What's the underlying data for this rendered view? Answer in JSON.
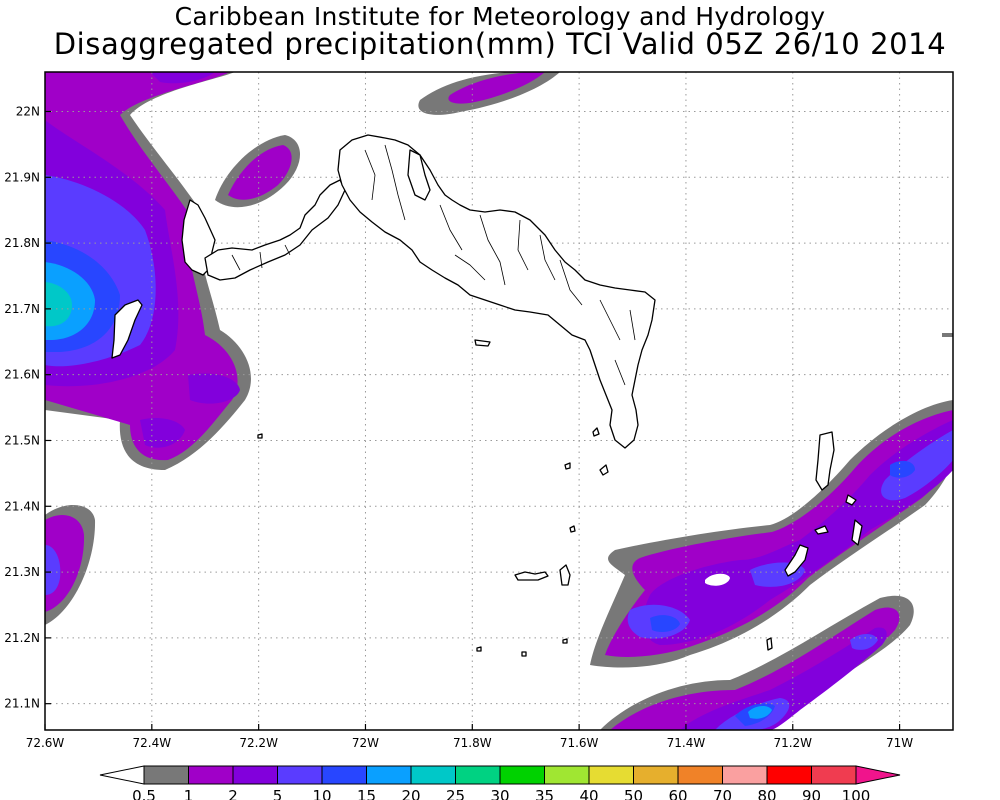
{
  "title": {
    "line1": "Caribbean Institute for Meteorology and Hydrology",
    "line2": "Disaggregated precipitation(mm) TCI Valid 05Z 26/10 2014"
  },
  "map": {
    "lon_range": [
      -72.6,
      -70.9
    ],
    "lat_range": [
      21.06,
      22.06
    ],
    "lon_ticks": [
      {
        "value": -72.6,
        "label": "72.6W"
      },
      {
        "value": -72.4,
        "label": "72.4W"
      },
      {
        "value": -72.2,
        "label": "72.2W"
      },
      {
        "value": -72.0,
        "label": "72W"
      },
      {
        "value": -71.8,
        "label": "71.8W"
      },
      {
        "value": -71.6,
        "label": "71.6W"
      },
      {
        "value": -71.4,
        "label": "71.4W"
      },
      {
        "value": -71.2,
        "label": "71.2W"
      },
      {
        "value": -71.0,
        "label": "71W"
      }
    ],
    "lat_ticks": [
      {
        "value": 22.0,
        "label": "22N"
      },
      {
        "value": 21.9,
        "label": "21.9N"
      },
      {
        "value": 21.8,
        "label": "21.8N"
      },
      {
        "value": 21.7,
        "label": "21.7N"
      },
      {
        "value": 21.6,
        "label": "21.6N"
      },
      {
        "value": 21.5,
        "label": "21.5N"
      },
      {
        "value": 21.4,
        "label": "21.4N"
      },
      {
        "value": 21.3,
        "label": "21.3N"
      },
      {
        "value": 21.2,
        "label": "21.2N"
      },
      {
        "value": 21.1,
        "label": "21.1N"
      }
    ],
    "grid": "dotted"
  },
  "colorbar": {
    "labels": [
      "0.5",
      "1",
      "2",
      "5",
      "10",
      "15",
      "20",
      "25",
      "30",
      "35",
      "40",
      "50",
      "60",
      "70",
      "80",
      "90",
      "100"
    ],
    "colors": [
      "#787878",
      "#a000c8",
      "#8200dc",
      "#5a3cff",
      "#2846ff",
      "#0aa0ff",
      "#00c8c8",
      "#00d282",
      "#00d200",
      "#a0e632",
      "#e6dc32",
      "#e6af2d",
      "#f08228",
      "#faa0a0",
      "#ff0000",
      "#f03c50",
      "#f0148c"
    ],
    "under_color": "#ffffff",
    "over_color": "#f0148c"
  }
}
